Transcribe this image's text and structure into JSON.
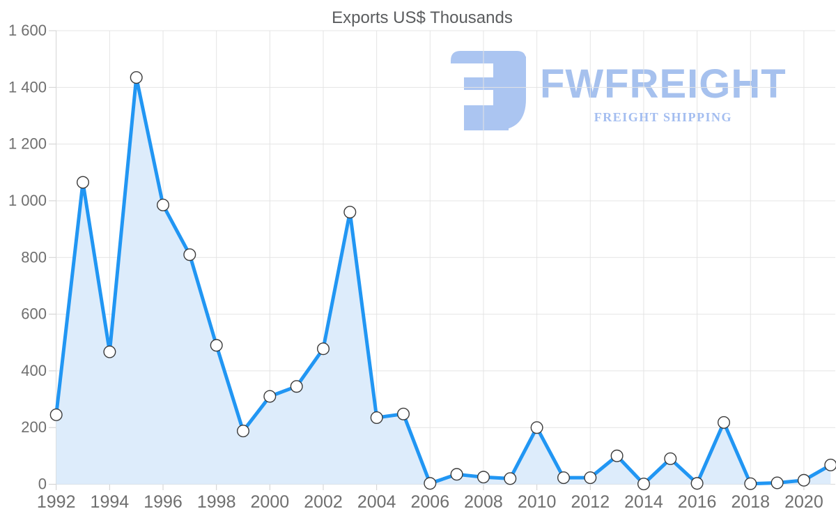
{
  "chart_data": {
    "type": "area",
    "title": "Exports US$ Thousands",
    "series_name": "Exports US$ Thousands",
    "x": [
      1992,
      1993,
      1994,
      1995,
      1996,
      1997,
      1998,
      1999,
      2000,
      2001,
      2002,
      2003,
      2004,
      2005,
      2006,
      2007,
      2008,
      2009,
      2010,
      2011,
      2012,
      2013,
      2014,
      2015,
      2016,
      2017,
      2018,
      2019,
      2020,
      2021
    ],
    "values": [
      245,
      1065,
      467,
      1435,
      985,
      810,
      490,
      188,
      310,
      345,
      478,
      960,
      235,
      248,
      3,
      35,
      25,
      20,
      200,
      23,
      23,
      100,
      1,
      90,
      3,
      218,
      2,
      5,
      14,
      68
    ],
    "xlabel": "",
    "ylabel": "",
    "ylim": [
      0,
      1600
    ],
    "y_ticks": [
      0,
      200,
      400,
      600,
      800,
      1000,
      1200,
      1400,
      1600
    ],
    "y_tick_labels": [
      "0",
      "200",
      "400",
      "600",
      "800",
      "1 000",
      "1 200",
      "1 400",
      "1 600"
    ],
    "x_ticks": [
      1992,
      1994,
      1996,
      1998,
      2000,
      2002,
      2004,
      2006,
      2008,
      2010,
      2012,
      2014,
      2016,
      2018,
      2020
    ],
    "x_tick_labels": [
      "1992",
      "1994",
      "1996",
      "1998",
      "2000",
      "2002",
      "2004",
      "2006",
      "2008",
      "2010",
      "2012",
      "2014",
      "2016",
      "2018",
      "2020"
    ],
    "grid": true,
    "legend": false,
    "line_color": "#2196f3",
    "area_color": "#ddecfb",
    "marker_fill": "#ffffff",
    "marker_stroke": "#3a3a3a"
  },
  "style": {
    "grid_color": "#e4e4e4",
    "tick_color": "#cfcfcf",
    "axis_color": "#d8d8d8",
    "label_color": "#6f6f6f",
    "title_color": "#5a5c5e"
  },
  "watermark": {
    "brand": "FWFREIGHT",
    "tagline": "FREIGHT SHIPPING",
    "brand_color": "#a6c1ee",
    "tagline_color": "#a3bdf0",
    "mark_color": "#abc5f1"
  }
}
